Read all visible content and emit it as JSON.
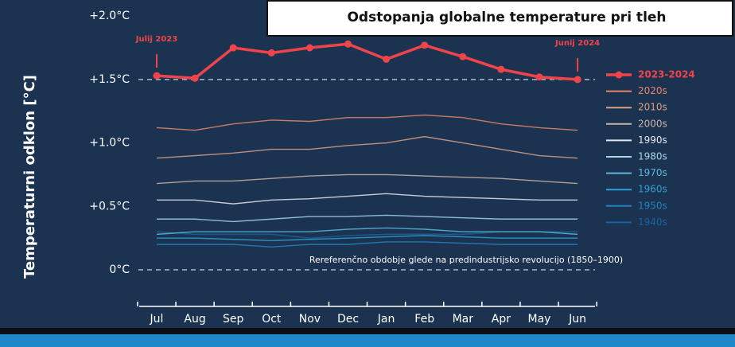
{
  "chart_data": {
    "type": "line",
    "title": "Odstopanja globalne temperature pri tleh",
    "y_label": "Temperaturni odklon [°C]",
    "categories": [
      "Jul",
      "Aug",
      "Sep",
      "Oct",
      "Nov",
      "Dec",
      "Jan",
      "Feb",
      "Mar",
      "Apr",
      "May",
      "Jun"
    ],
    "ylim": [
      -0.25,
      2.0
    ],
    "yticks": [
      {
        "value": 0,
        "label": "0°C"
      },
      {
        "value": 0.5,
        "label": "+0.5°C"
      },
      {
        "value": 1.0,
        "label": "+1.0°C"
      },
      {
        "value": 1.5,
        "label": "+1.5°C"
      },
      {
        "value": 2.0,
        "label": "+2.0°C"
      }
    ],
    "reference_lines": [
      0,
      1.5
    ],
    "annotations": [
      {
        "text": "Julij 2023",
        "series": 0,
        "index": 0
      },
      {
        "text": "Junij 2024",
        "series": 0,
        "index": 11
      },
      {
        "text": "Rereferenčno obdobje glede na predindustrijsko revolucijo (1850–1900)",
        "y": 0
      }
    ],
    "series": [
      {
        "name": "2023-2024",
        "color": "#f0434a",
        "values": [
          1.53,
          1.51,
          1.75,
          1.71,
          1.75,
          1.78,
          1.66,
          1.77,
          1.68,
          1.58,
          1.52,
          1.5
        ]
      },
      {
        "name": "2020s",
        "color": "#e8876b",
        "values": [
          1.12,
          1.1,
          1.15,
          1.18,
          1.17,
          1.2,
          1.2,
          1.22,
          1.2,
          1.15,
          1.12,
          1.1
        ]
      },
      {
        "name": "2010s",
        "color": "#d9a088",
        "values": [
          0.88,
          0.9,
          0.92,
          0.95,
          0.95,
          0.98,
          1.0,
          1.05,
          1.0,
          0.95,
          0.9,
          0.88
        ]
      },
      {
        "name": "2000s",
        "color": "#c9b3a8",
        "values": [
          0.68,
          0.7,
          0.7,
          0.72,
          0.74,
          0.75,
          0.75,
          0.74,
          0.73,
          0.72,
          0.7,
          0.68
        ]
      },
      {
        "name": "1990s",
        "color": "#e4e8ec",
        "values": [
          0.55,
          0.55,
          0.52,
          0.55,
          0.56,
          0.58,
          0.6,
          0.58,
          0.57,
          0.56,
          0.55,
          0.55
        ]
      },
      {
        "name": "1980s",
        "color": "#a6d5e6",
        "values": [
          0.4,
          0.4,
          0.38,
          0.4,
          0.42,
          0.42,
          0.43,
          0.42,
          0.41,
          0.4,
          0.4,
          0.4
        ]
      },
      {
        "name": "1970s",
        "color": "#5bb9d6",
        "values": [
          0.28,
          0.3,
          0.3,
          0.3,
          0.3,
          0.32,
          0.33,
          0.32,
          0.3,
          0.3,
          0.3,
          0.28
        ]
      },
      {
        "name": "1960s",
        "color": "#2fa0d2",
        "values": [
          0.25,
          0.25,
          0.24,
          0.23,
          0.24,
          0.25,
          0.26,
          0.27,
          0.26,
          0.25,
          0.25,
          0.25
        ]
      },
      {
        "name": "1950s",
        "color": "#1f84c0",
        "values": [
          0.2,
          0.2,
          0.2,
          0.18,
          0.2,
          0.2,
          0.22,
          0.22,
          0.21,
          0.2,
          0.2,
          0.2
        ]
      },
      {
        "name": "1940s",
        "color": "#1b62a0",
        "values": [
          0.3,
          0.28,
          0.28,
          0.28,
          0.25,
          0.27,
          0.28,
          0.28,
          0.28,
          0.3,
          0.3,
          0.3
        ]
      }
    ]
  }
}
